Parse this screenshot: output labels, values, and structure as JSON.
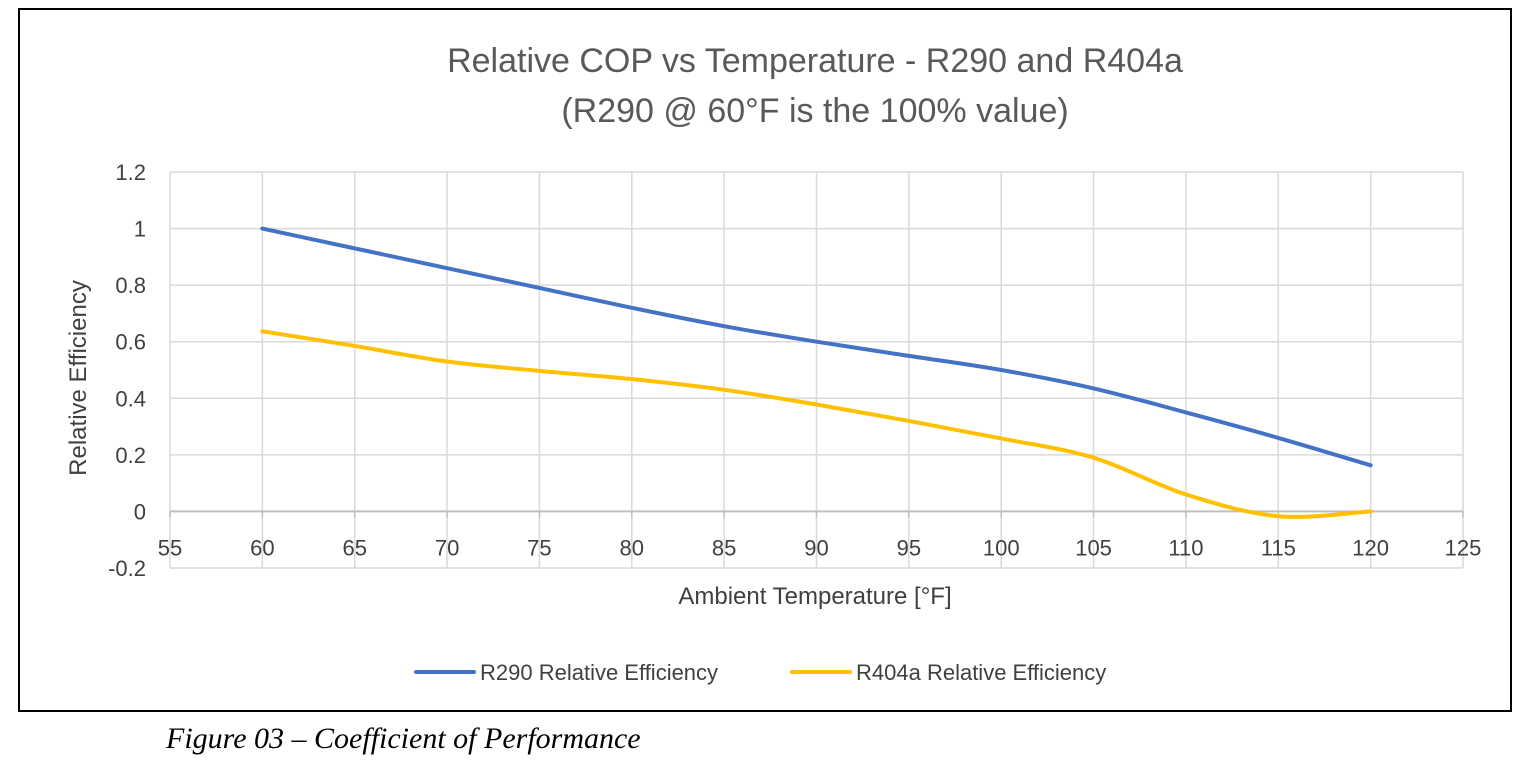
{
  "caption": "Figure 03 – Coefficient of Performance",
  "chart_data": {
    "type": "line",
    "title": [
      "Relative COP vs Temperature - R290 and R404a",
      "(R290 @ 60°F is the 100% value)"
    ],
    "xlabel": "Ambient Temperature [°F]",
    "ylabel": "Relative Efficiency",
    "xlim": [
      55,
      125
    ],
    "ylim": [
      -0.2,
      1.2
    ],
    "xticks": [
      55,
      60,
      65,
      70,
      75,
      80,
      85,
      90,
      95,
      100,
      105,
      110,
      115,
      120,
      125
    ],
    "yticks": [
      -0.2,
      0,
      0.2,
      0.4,
      0.6,
      0.8,
      1,
      1.2
    ],
    "ytick_labels": [
      "-0.2",
      "0",
      "0.2",
      "0.4",
      "0.6",
      "0.8",
      "1",
      "1.2"
    ],
    "grid": true,
    "legend": "bottom",
    "x": [
      60,
      65,
      70,
      75,
      80,
      85,
      90,
      95,
      100,
      105,
      110,
      115,
      120
    ],
    "series": [
      {
        "name": "R290 Relative Efficiency",
        "color": "#4472C4",
        "values": [
          1.0,
          0.93,
          0.86,
          0.79,
          0.72,
          0.655,
          0.6,
          0.55,
          0.5,
          0.435,
          0.35,
          0.26,
          0.163
        ]
      },
      {
        "name": "R404a Relative Efficiency",
        "color": "#FFC000",
        "values": [
          0.637,
          0.585,
          0.53,
          0.497,
          0.468,
          0.43,
          0.378,
          0.32,
          0.258,
          0.19,
          0.06,
          -0.017,
          0.0
        ]
      }
    ]
  }
}
